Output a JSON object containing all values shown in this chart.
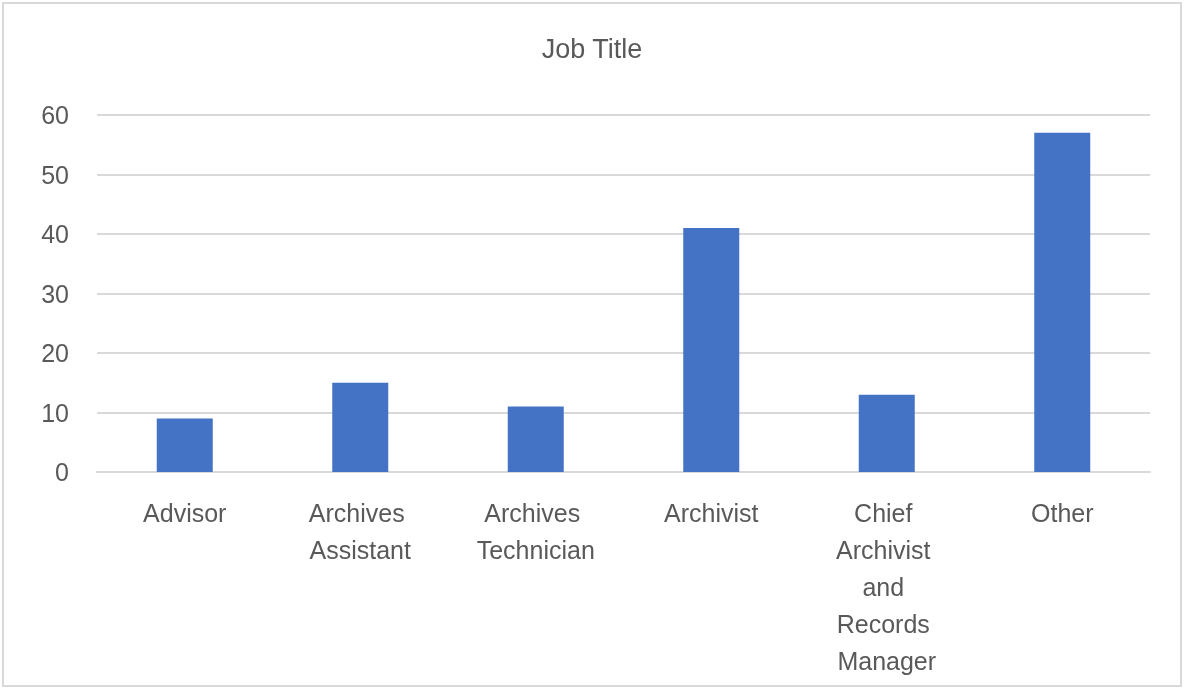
{
  "chart_data": {
    "type": "bar",
    "title": "Job Title",
    "categories": [
      "Advisor",
      "Archives Assistant",
      "Archives Technician",
      "Archivist",
      "Chief Archivist and Records Manager",
      "Other"
    ],
    "values": [
      9,
      15,
      11,
      41,
      13,
      57
    ],
    "color": "#4472c4",
    "ylim": [
      0,
      60
    ],
    "yticks": [
      0,
      10,
      20,
      30,
      40,
      50,
      60
    ],
    "grid": true
  }
}
